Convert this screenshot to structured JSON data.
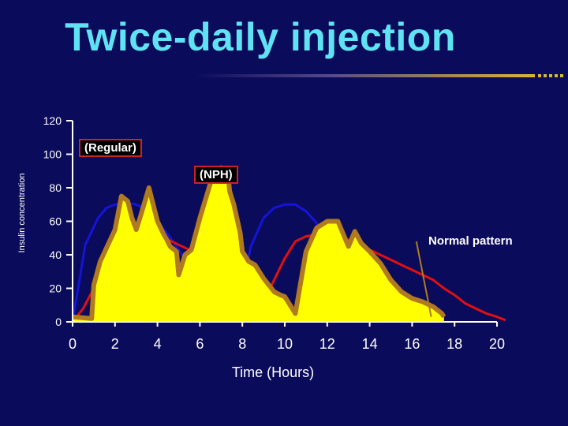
{
  "slide": {
    "title": "Twice-daily injection"
  },
  "colors": {
    "background": "#0b0b5c",
    "title": "#5fe3f2",
    "blue_curve": "#1414d8",
    "red_curve": "#e01010",
    "insulin_fill": "#ffff00",
    "insulin_outline": "#b07a20",
    "axis": "#ffffff"
  },
  "chart_data": {
    "type": "area",
    "title": "Twice-daily injection",
    "xlabel": "Time (Hours)",
    "ylabel": "Insulin concentration",
    "xlim": [
      0,
      20
    ],
    "ylim": [
      0,
      120
    ],
    "xticks": [
      0,
      2,
      4,
      6,
      8,
      10,
      12,
      14,
      16,
      18,
      20
    ],
    "yticks": [
      0,
      20,
      40,
      60,
      80,
      100,
      120
    ],
    "annotations": {
      "regular": "(Regular)",
      "nph": "(NPH)",
      "normal": "Normal pattern"
    },
    "series": [
      {
        "name": "Regular insulin (blue)",
        "x": [
          0,
          0.6,
          1.2,
          1.6,
          2.0,
          2.5,
          3.0,
          3.5,
          4.0,
          4.5,
          5.0,
          5.5,
          6.0,
          6.5,
          7.0,
          7.4
        ],
        "y": [
          0,
          46,
          62,
          68,
          70,
          71,
          70,
          67,
          60,
          52,
          43,
          33,
          22,
          12,
          4,
          0
        ],
        "x2": [
          7.6,
          8.0,
          8.4,
          9.0,
          9.5,
          10.0,
          10.5,
          11.0,
          11.5,
          12.0,
          12.5,
          13.0,
          13.5,
          14.0,
          14.5,
          15.0,
          15.5,
          16.0,
          16.5,
          17.0,
          17.5
        ],
        "y2": [
          0,
          20,
          45,
          62,
          68,
          70,
          70,
          66,
          59,
          48,
          38,
          28,
          20,
          14,
          10,
          7,
          5,
          3,
          2,
          1,
          0
        ]
      },
      {
        "name": "NPH insulin (red)",
        "x": [
          0,
          0.5,
          1.0,
          1.5,
          2.0,
          2.5,
          3.0,
          3.5,
          4.0,
          4.5,
          5.0,
          5.5,
          6.0,
          6.5,
          7.0,
          7.5,
          8.0,
          8.5,
          9.0,
          9.5,
          10.0,
          10.5,
          11.0,
          11.5,
          12.0,
          12.5,
          13.0,
          13.5,
          14.0,
          14.5,
          15.0,
          15.5,
          16.0,
          16.5,
          17.0,
          17.5,
          18.0,
          18.5,
          19.0,
          19.5,
          20.0,
          20.4
        ],
        "y": [
          0,
          8,
          20,
          32,
          42,
          48,
          51,
          52,
          51,
          49,
          46,
          43,
          40,
          36,
          30,
          8,
          5,
          8,
          12,
          25,
          38,
          48,
          51,
          52,
          52,
          51,
          49,
          46,
          43,
          40,
          37,
          34,
          31,
          28,
          25,
          20,
          16,
          11,
          8,
          5,
          3,
          1
        ]
      },
      {
        "name": "Normal pattern",
        "x": [
          0,
          0.9,
          1.0,
          1.3,
          2.0,
          2.3,
          2.6,
          2.8,
          3.0,
          3.2,
          3.6,
          4.0,
          4.3,
          4.4,
          4.6,
          4.9,
          5.0,
          5.3,
          5.6,
          6.0,
          6.5,
          7.0,
          7.3,
          7.4,
          7.6,
          7.9,
          8.0,
          8.3,
          8.6,
          9.0,
          9.5,
          9.8,
          10.0,
          10.5,
          11.0,
          11.5,
          12.0,
          12.5,
          13.0,
          13.3,
          13.6,
          14.0,
          14.5,
          15.0,
          15.5,
          16.0,
          16.5,
          17.0,
          17.4,
          17.5
        ],
        "y": [
          3,
          2,
          22,
          36,
          55,
          75,
          72,
          62,
          55,
          63,
          80,
          60,
          52,
          50,
          45,
          42,
          28,
          40,
          43,
          62,
          83,
          92,
          91,
          78,
          70,
          53,
          42,
          36,
          34,
          26,
          18,
          16,
          15,
          5,
          42,
          56,
          60,
          60,
          45,
          54,
          47,
          42,
          35,
          25,
          18,
          14,
          12,
          9,
          5,
          3
        ]
      }
    ]
  }
}
